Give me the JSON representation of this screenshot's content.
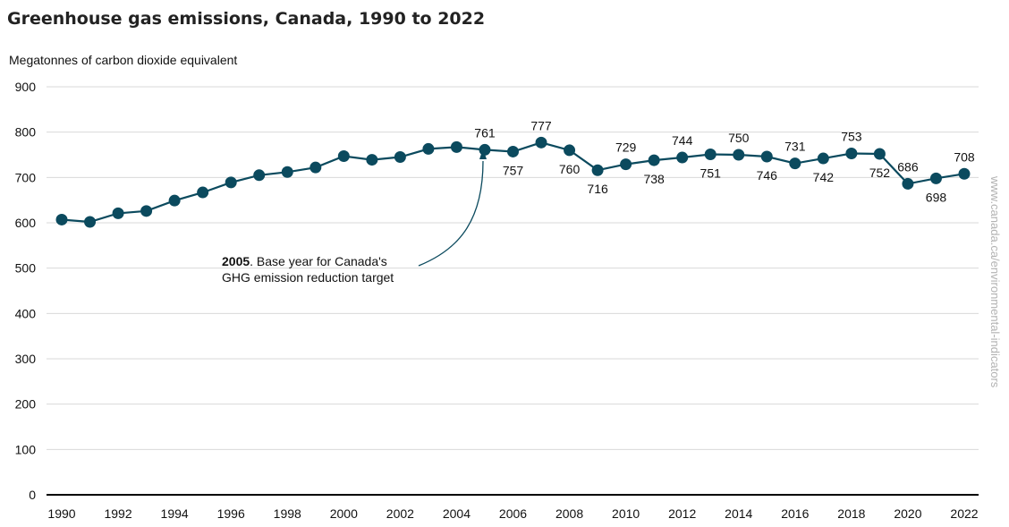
{
  "title": "Greenhouse gas emissions, Canada, 1990 to 2022",
  "colors": {
    "series": "#0b4a5e",
    "grid": "#d9d9d9",
    "axis": "#000000",
    "side_text": "#b3b3b3"
  },
  "source_text": "www.canada.ca/environmental-indicators",
  "annotation": {
    "year": "2005",
    "line1_rest": ". Base year for Canada's",
    "line2": "GHG emission reduction target"
  },
  "chart_data": {
    "type": "line",
    "title": "Greenhouse gas emissions, Canada, 1990 to 2022",
    "ylabel": "Megatonnes of carbon dioxide equivalent",
    "xlabel": "",
    "ylim": [
      0,
      900
    ],
    "yticks": [
      0,
      100,
      200,
      300,
      400,
      500,
      600,
      700,
      800,
      900
    ],
    "xticks": [
      1990,
      1992,
      1994,
      1996,
      1998,
      2000,
      2002,
      2004,
      2006,
      2008,
      2010,
      2012,
      2014,
      2016,
      2018,
      2020,
      2022
    ],
    "grid": "horizontal",
    "x": [
      1990,
      1991,
      1992,
      1993,
      1994,
      1995,
      1996,
      1997,
      1998,
      1999,
      2000,
      2001,
      2002,
      2003,
      2004,
      2005,
      2006,
      2007,
      2008,
      2009,
      2010,
      2011,
      2012,
      2013,
      2014,
      2015,
      2016,
      2017,
      2018,
      2019,
      2020,
      2021,
      2022
    ],
    "values": [
      607,
      602,
      621,
      626,
      649,
      667,
      689,
      705,
      712,
      722,
      747,
      739,
      745,
      763,
      767,
      761,
      757,
      777,
      760,
      716,
      729,
      738,
      744,
      751,
      750,
      746,
      731,
      742,
      753,
      752,
      686,
      698,
      708
    ],
    "data_labels": [
      {
        "year": 2005,
        "text": "761",
        "pos": "above"
      },
      {
        "year": 2006,
        "text": "757",
        "pos": "below"
      },
      {
        "year": 2007,
        "text": "777",
        "pos": "above"
      },
      {
        "year": 2008,
        "text": "760",
        "pos": "below"
      },
      {
        "year": 2009,
        "text": "716",
        "pos": "below"
      },
      {
        "year": 2010,
        "text": "729",
        "pos": "above"
      },
      {
        "year": 2011,
        "text": "738",
        "pos": "below"
      },
      {
        "year": 2012,
        "text": "744",
        "pos": "above"
      },
      {
        "year": 2013,
        "text": "751",
        "pos": "below"
      },
      {
        "year": 2014,
        "text": "750",
        "pos": "above"
      },
      {
        "year": 2015,
        "text": "746",
        "pos": "below"
      },
      {
        "year": 2016,
        "text": "731",
        "pos": "above"
      },
      {
        "year": 2017,
        "text": "742",
        "pos": "below"
      },
      {
        "year": 2018,
        "text": "753",
        "pos": "above"
      },
      {
        "year": 2019,
        "text": "752",
        "pos": "below"
      },
      {
        "year": 2020,
        "text": "686",
        "pos": "above"
      },
      {
        "year": 2021,
        "text": "698",
        "pos": "below"
      },
      {
        "year": 2022,
        "text": "708",
        "pos": "above"
      }
    ]
  }
}
